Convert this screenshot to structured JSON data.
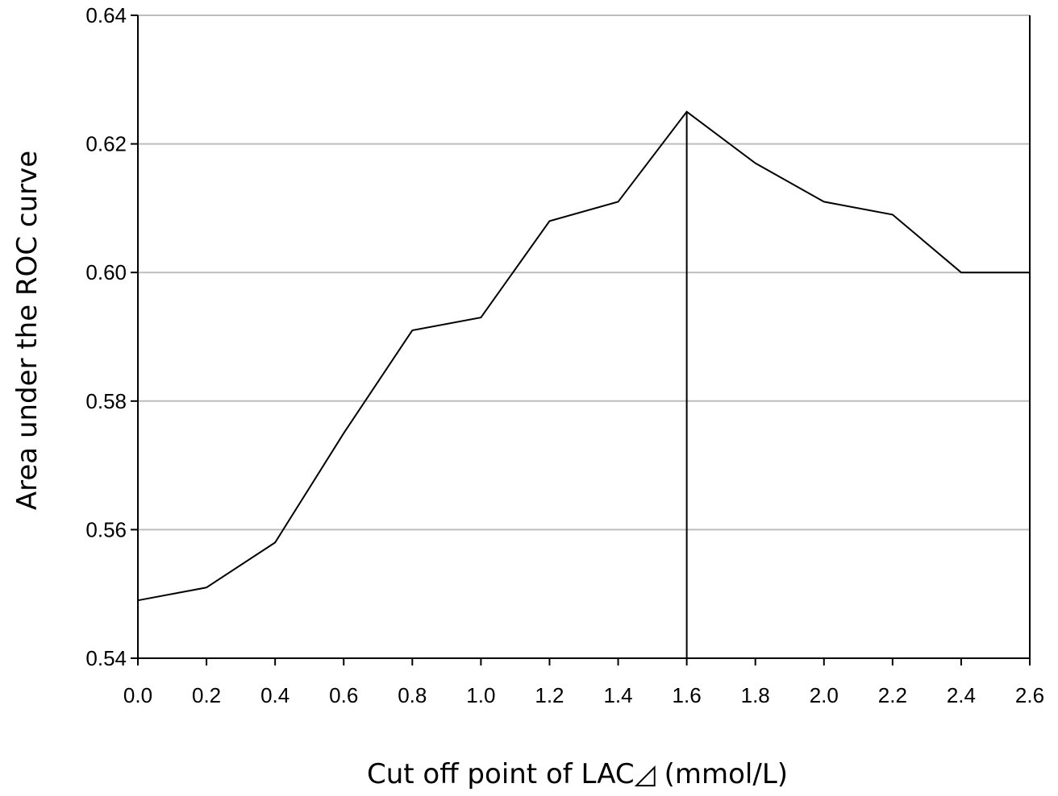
{
  "chart_data": {
    "type": "line",
    "title": "",
    "xlabel": "Cut off point of LAC◿ (mmol/L)",
    "ylabel": "Area under the ROC curve",
    "xlim": [
      0.0,
      2.6
    ],
    "ylim": [
      0.54,
      0.64
    ],
    "x_ticks": [
      "0.0",
      "0.2",
      "0.4",
      "0.6",
      "0.8",
      "1.0",
      "1.2",
      "1.4",
      "1.6",
      "1.8",
      "2.0",
      "2.2",
      "2.4",
      "2.6"
    ],
    "y_ticks": [
      "0.54",
      "0.56",
      "0.58",
      "0.60",
      "0.62",
      "0.64"
    ],
    "grid": "horizontal",
    "series": [
      {
        "x": [
          0.0,
          0.2,
          0.4,
          0.6,
          0.8,
          1.0,
          1.2,
          1.4,
          1.6,
          1.8,
          2.0,
          2.2,
          2.4,
          2.6
        ],
        "y": [
          0.549,
          0.551,
          0.558,
          0.575,
          0.591,
          0.593,
          0.608,
          0.611,
          0.625,
          0.617,
          0.611,
          0.609,
          0.6,
          0.6
        ],
        "color": "#000000"
      }
    ],
    "reference_line": {
      "x": 1.6,
      "y": 0.625
    }
  }
}
